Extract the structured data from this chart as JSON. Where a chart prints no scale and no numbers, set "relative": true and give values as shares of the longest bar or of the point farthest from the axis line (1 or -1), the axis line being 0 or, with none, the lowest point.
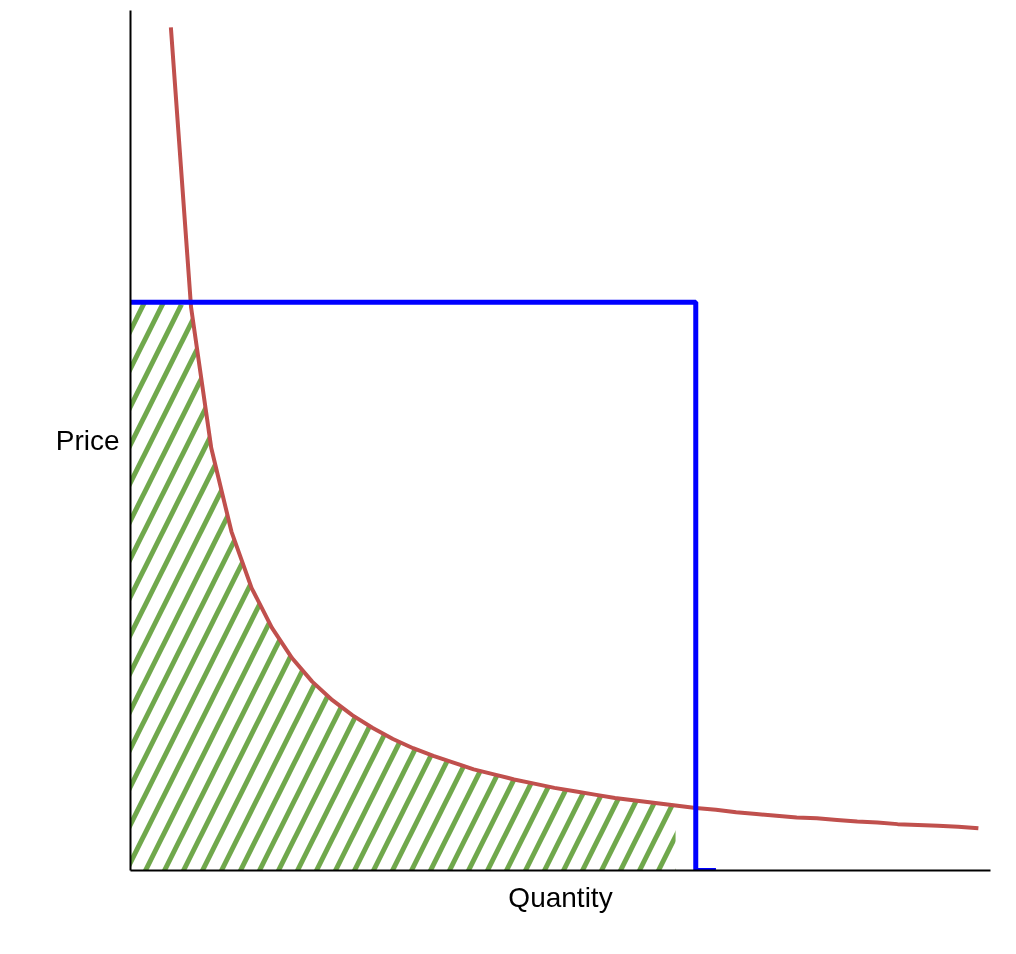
{
  "chart_data": {
    "type": "line",
    "xlabel": "Quantity",
    "ylabel": "Price",
    "relative": true,
    "grid": false,
    "categories": [
      null,
      null,
      null,
      null,
      null,
      null,
      null,
      null,
      null,
      null,
      null,
      null,
      null,
      null,
      null,
      null,
      null,
      null,
      null,
      null,
      null,
      null,
      null,
      null,
      null,
      null,
      null,
      null,
      null,
      null,
      null,
      null,
      null,
      null,
      null,
      null,
      null,
      null,
      null,
      null,
      null,
      null,
      null
    ],
    "series": [
      {
        "type": "area",
        "color": "#70a84c",
        "values": [
          0.674,
          0.674,
          0.674,
          0.668,
          0.501,
          0.402,
          0.335,
          0.288,
          0.252,
          0.224,
          0.202,
          0.184,
          0.169,
          0.156,
          0.145,
          0.136,
          0.128,
          0.12,
          0.114,
          0.108,
          0.103,
          0.098,
          0.094,
          0.09,
          0.086,
          0.083,
          0.08,
          0.077,
          null,
          null,
          null,
          null,
          null,
          null,
          null,
          null,
          null,
          null,
          null,
          null,
          null,
          null,
          null
        ]
      },
      {
        "color": "#c0504d",
        "values": [
          null,
          null,
          1.0,
          0.668,
          0.501,
          0.402,
          0.335,
          0.288,
          0.252,
          0.224,
          0.202,
          0.184,
          0.169,
          0.156,
          0.145,
          0.136,
          0.128,
          0.12,
          0.114,
          0.108,
          0.103,
          0.098,
          0.094,
          0.09,
          0.086,
          0.083,
          0.08,
          0.077,
          0.074,
          0.072,
          0.069,
          0.067,
          0.065,
          0.063,
          0.062,
          0.06,
          0.058,
          0.057,
          0.055,
          0.054,
          0.053,
          0.052,
          0.05
        ]
      },
      {
        "type": "step",
        "color": "#0000ff",
        "values": [
          0.674,
          0.674,
          0.674,
          0.674,
          0.674,
          0.674,
          0.674,
          0.674,
          0.674,
          0.674,
          0.674,
          0.674,
          0.674,
          0.674,
          0.674,
          0.674,
          0.674,
          0.674,
          0.674,
          0.674,
          0.674,
          0.674,
          0.674,
          0.674,
          0.674,
          0.674,
          0.674,
          0.674,
          0.674,
          0,
          null,
          null,
          null,
          null,
          null,
          null,
          null,
          null,
          null,
          null,
          null,
          null,
          null
        ]
      }
    ]
  }
}
